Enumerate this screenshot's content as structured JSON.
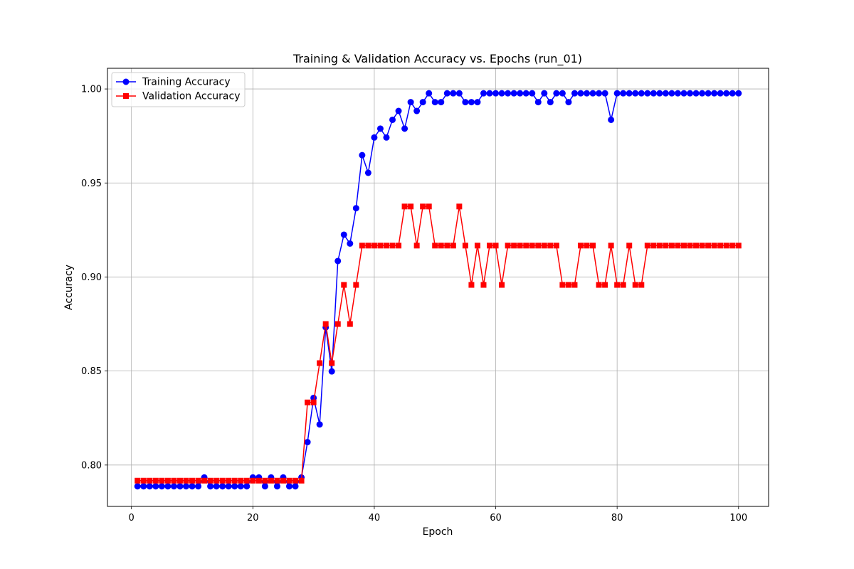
{
  "chart_data": {
    "type": "line",
    "title": "Training & Validation Accuracy vs. Epochs (run_01)",
    "xlabel": "Epoch",
    "ylabel": "Accuracy",
    "xlim": [
      -3.95,
      104.95
    ],
    "ylim": [
      0.778,
      1.011
    ],
    "x_ticks": [
      0,
      20,
      40,
      60,
      80,
      100
    ],
    "x_tick_labels": [
      "0",
      "20",
      "40",
      "60",
      "80",
      "100"
    ],
    "y_ticks": [
      0.8,
      0.85,
      0.9,
      0.95,
      1.0
    ],
    "y_tick_labels": [
      "0.80",
      "0.85",
      "0.90",
      "0.95",
      "1.00"
    ],
    "grid": true,
    "legend_position": "top-left",
    "x": [
      1,
      2,
      3,
      4,
      5,
      6,
      7,
      8,
      9,
      10,
      11,
      12,
      13,
      14,
      15,
      16,
      17,
      18,
      19,
      20,
      21,
      22,
      23,
      24,
      25,
      26,
      27,
      28,
      29,
      30,
      31,
      32,
      33,
      34,
      35,
      36,
      37,
      38,
      39,
      40,
      41,
      42,
      43,
      44,
      45,
      46,
      47,
      48,
      49,
      50,
      51,
      52,
      53,
      54,
      55,
      56,
      57,
      58,
      59,
      60,
      61,
      62,
      63,
      64,
      65,
      66,
      67,
      68,
      69,
      70,
      71,
      72,
      73,
      74,
      75,
      76,
      77,
      78,
      79,
      80,
      81,
      82,
      83,
      84,
      85,
      86,
      87,
      88,
      89,
      90,
      91,
      92,
      93,
      94,
      95,
      96,
      97,
      98,
      99,
      100
    ],
    "series": [
      {
        "name": "Training Accuracy",
        "color": "#0000ff",
        "marker": "circle",
        "values": [
          0.7887,
          0.7887,
          0.7887,
          0.7887,
          0.7887,
          0.7887,
          0.7887,
          0.7887,
          0.7887,
          0.7887,
          0.7887,
          0.7934,
          0.7887,
          0.7887,
          0.7887,
          0.7887,
          0.7887,
          0.7887,
          0.7887,
          0.7934,
          0.7934,
          0.7887,
          0.7934,
          0.7887,
          0.7934,
          0.7887,
          0.7887,
          0.7934,
          0.8122,
          0.8357,
          0.8216,
          0.8732,
          0.8498,
          0.9085,
          0.9225,
          0.9178,
          0.9366,
          0.9648,
          0.9554,
          0.9742,
          0.9789,
          0.9742,
          0.9836,
          0.9883,
          0.9789,
          0.993,
          0.9883,
          0.993,
          0.9977,
          0.993,
          0.993,
          0.9977,
          0.9977,
          0.9977,
          0.993,
          0.993,
          0.993,
          0.9977,
          0.9977,
          0.9977,
          0.9977,
          0.9977,
          0.9977,
          0.9977,
          0.9977,
          0.9977,
          0.993,
          0.9977,
          0.993,
          0.9977,
          0.9977,
          0.993,
          0.9977,
          0.9977,
          0.9977,
          0.9977,
          0.9977,
          0.9977,
          0.9836,
          0.9977,
          0.9977,
          0.9977,
          0.9977,
          0.9977,
          0.9977,
          0.9977,
          0.9977,
          0.9977,
          0.9977,
          0.9977,
          0.9977,
          0.9977,
          0.9977,
          0.9977,
          0.9977,
          0.9977,
          0.9977,
          0.9977,
          0.9977,
          0.9977
        ]
      },
      {
        "name": "Validation Accuracy",
        "color": "#ff0000",
        "marker": "square",
        "values": [
          0.7917,
          0.7917,
          0.7917,
          0.7917,
          0.7917,
          0.7917,
          0.7917,
          0.7917,
          0.7917,
          0.7917,
          0.7917,
          0.7917,
          0.7917,
          0.7917,
          0.7917,
          0.7917,
          0.7917,
          0.7917,
          0.7917,
          0.7917,
          0.7917,
          0.7917,
          0.7917,
          0.7917,
          0.7917,
          0.7917,
          0.7917,
          0.7917,
          0.8333,
          0.8333,
          0.8542,
          0.875,
          0.8542,
          0.875,
          0.8958,
          0.875,
          0.8958,
          0.9167,
          0.9167,
          0.9167,
          0.9167,
          0.9167,
          0.9167,
          0.9167,
          0.9375,
          0.9375,
          0.9167,
          0.9375,
          0.9375,
          0.9167,
          0.9167,
          0.9167,
          0.9167,
          0.9375,
          0.9167,
          0.8958,
          0.9167,
          0.8958,
          0.9167,
          0.9167,
          0.8958,
          0.9167,
          0.9167,
          0.9167,
          0.9167,
          0.9167,
          0.9167,
          0.9167,
          0.9167,
          0.9167,
          0.8958,
          0.8958,
          0.8958,
          0.9167,
          0.9167,
          0.9167,
          0.8958,
          0.8958,
          0.9167,
          0.8958,
          0.8958,
          0.9167,
          0.8958,
          0.8958,
          0.9167,
          0.9167,
          0.9167,
          0.9167,
          0.9167,
          0.9167,
          0.9167,
          0.9167,
          0.9167,
          0.9167,
          0.9167,
          0.9167,
          0.9167,
          0.9167,
          0.9167,
          0.9167
        ]
      }
    ]
  }
}
